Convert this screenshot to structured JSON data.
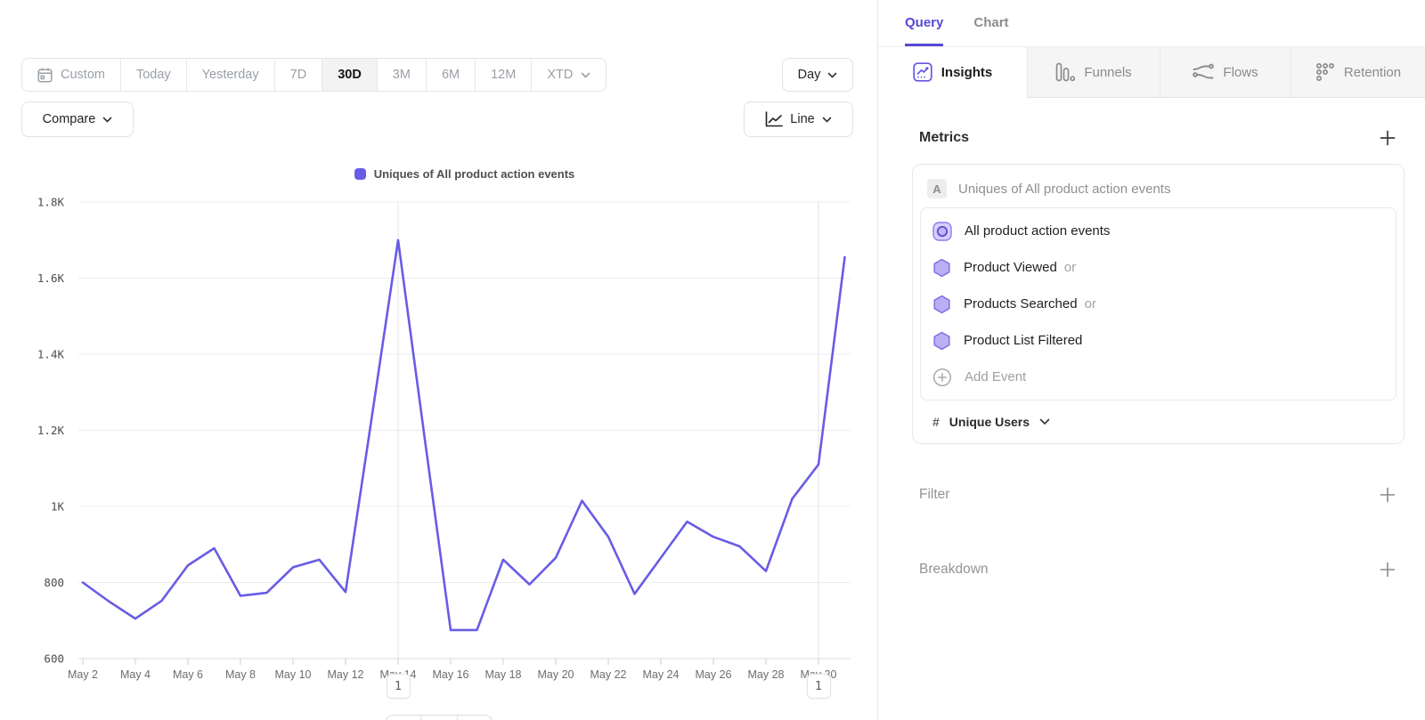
{
  "left_panel": {
    "date_ranges": {
      "items": [
        "Custom",
        "Today",
        "Yesterday",
        "7D",
        "30D",
        "3M",
        "6M",
        "12M",
        "XTD"
      ],
      "selected": "30D"
    },
    "granularity": {
      "label": "Day"
    },
    "compare": {
      "label": "Compare"
    },
    "chart_type": {
      "label": "Line"
    },
    "annotations": [
      {
        "label": "1",
        "x_index": 12
      },
      {
        "label": "1",
        "x_index": 28
      }
    ]
  },
  "chart_data": {
    "type": "line",
    "title": "",
    "x": [
      "May 2",
      "May 3",
      "May 4",
      "May 5",
      "May 6",
      "May 7",
      "May 8",
      "May 9",
      "May 10",
      "May 11",
      "May 12",
      "May 13",
      "May 14",
      "May 15",
      "May 16",
      "May 17",
      "May 18",
      "May 19",
      "May 20",
      "May 21",
      "May 22",
      "May 23",
      "May 24",
      "May 25",
      "May 26",
      "May 27",
      "May 28",
      "May 29",
      "May 30",
      "May 31"
    ],
    "x_tick_every": 2,
    "series": [
      {
        "name": "Uniques of All product action events",
        "color": "#685CE6",
        "values": [
          800,
          750,
          705,
          752,
          845,
          890,
          765,
          773,
          840,
          860,
          775,
          1235,
          1700,
          1185,
          675,
          675,
          860,
          795,
          865,
          1015,
          920,
          770,
          865,
          960,
          920,
          895,
          830,
          1020,
          1110,
          1655
        ]
      }
    ],
    "y_ticks": [
      600,
      800,
      1000,
      1200,
      1400,
      1600,
      1800
    ],
    "y_tick_labels": [
      "600",
      "800",
      "1K",
      "1.2K",
      "1.4K",
      "1.6K",
      "1.8K"
    ],
    "ylim": [
      600,
      1800
    ],
    "grid": "horizontal",
    "legend_position": "top-center"
  },
  "right_panel": {
    "tabs": [
      {
        "label": "Query"
      },
      {
        "label": "Chart"
      }
    ],
    "report_tabs": [
      {
        "label": "Insights"
      },
      {
        "label": "Funnels"
      },
      {
        "label": "Flows"
      },
      {
        "label": "Retention"
      }
    ],
    "metrics": {
      "title": "Metrics",
      "card": {
        "badge": "A",
        "header": "Uniques of All product action events",
        "events": [
          {
            "name": "All product action events",
            "suffix": ""
          },
          {
            "name": "Product Viewed",
            "suffix": "or"
          },
          {
            "name": "Products Searched",
            "suffix": "or"
          },
          {
            "name": "Product List Filtered",
            "suffix": ""
          }
        ],
        "add_event": "Add Event",
        "measurement": {
          "prefix": "#",
          "label": "Unique Users"
        }
      }
    },
    "filter": {
      "title": "Filter"
    },
    "breakdown": {
      "title": "Breakdown"
    }
  }
}
